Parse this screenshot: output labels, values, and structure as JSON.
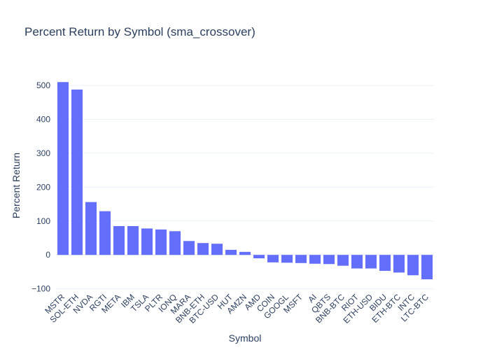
{
  "chart_data": {
    "type": "bar",
    "title": "Percent Return by Symbol (sma_crossover)",
    "xlabel": "Symbol",
    "ylabel": "Percent Return",
    "ylim": [
      -105,
      525
    ],
    "yticks": [
      -100,
      0,
      100,
      200,
      300,
      400,
      500
    ],
    "ytick_labels": [
      "−100",
      "0",
      "100",
      "200",
      "300",
      "400",
      "500"
    ],
    "grid": true,
    "bar_color": "#636efa",
    "categories": [
      "MSTR",
      "SOL-ETH",
      "NVDA",
      "RGTI",
      "META",
      "IBM",
      "TSLA",
      "PLTR",
      "IONQ",
      "MARA",
      "BNB-ETH",
      "BTC-USD",
      "HUT",
      "AMZN",
      "AMD",
      "COIN",
      "GOOGL",
      "MSFT",
      "AI",
      "QBTS",
      "BNB-BTC",
      "RIOT",
      "ETH-USD",
      "BIDU",
      "ETH-BTC",
      "INTC",
      "LTC-BTC"
    ],
    "values": [
      510,
      488,
      156,
      129,
      85,
      85,
      78,
      75,
      70,
      41,
      35,
      33,
      15,
      9,
      -10,
      -22,
      -23,
      -24,
      -26,
      -27,
      -32,
      -40,
      -40,
      -47,
      -52,
      -60,
      -72
    ]
  }
}
